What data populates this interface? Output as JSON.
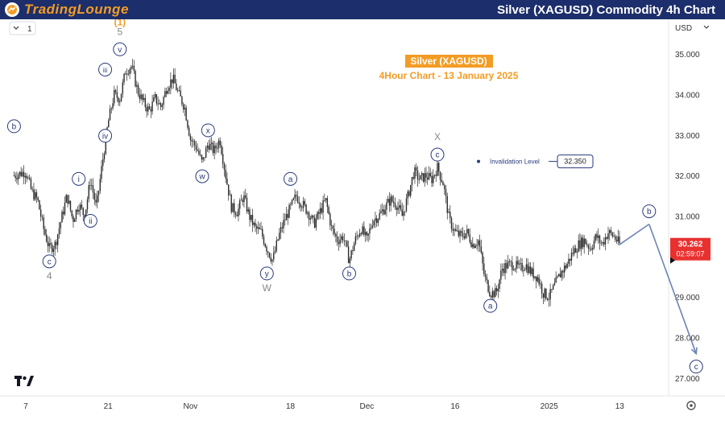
{
  "header": {
    "brand": "TradingLounge",
    "title": "Silver (XAGUSD) Commodity 4h Chart"
  },
  "toolbar": {
    "interval": "1"
  },
  "chart_data": {
    "type": "candlestick",
    "title": "Silver (XAGUSD)",
    "subtitle": "4Hour Chart - 13 January 2025",
    "currency": "USD",
    "ylim": [
      26.6,
      35.7
    ],
    "y_ticks": [
      "35.000",
      "34.000",
      "33.000",
      "32.000",
      "31.000",
      "30.000",
      "29.000",
      "28.000",
      "27.000"
    ],
    "y_tick_values": [
      35,
      34,
      33,
      32,
      31,
      30,
      29,
      28,
      27
    ],
    "x_ticks": [
      {
        "label": "7",
        "t": 0
      },
      {
        "label": "21",
        "t": 14
      },
      {
        "label": "Nov",
        "t": 28
      },
      {
        "label": "18",
        "t": 45
      },
      {
        "label": "Dec",
        "t": 58
      },
      {
        "label": "16",
        "t": 73
      },
      {
        "label": "2025",
        "t": 89
      },
      {
        "label": "13",
        "t": 101
      }
    ],
    "price_path": [
      {
        "t": -2,
        "p": 32.0
      },
      {
        "t": 0,
        "p": 32.1
      },
      {
        "t": 1,
        "p": 31.6
      },
      {
        "t": 2,
        "p": 31.4
      },
      {
        "t": 3,
        "p": 30.7
      },
      {
        "t": 4,
        "p": 30.2
      },
      {
        "t": 5,
        "p": 30.3
      },
      {
        "t": 6,
        "p": 30.9
      },
      {
        "t": 7,
        "p": 31.5
      },
      {
        "t": 8,
        "p": 30.9
      },
      {
        "t": 9,
        "p": 31.3
      },
      {
        "t": 10,
        "p": 31.0
      },
      {
        "t": 11,
        "p": 31.9
      },
      {
        "t": 12,
        "p": 31.2
      },
      {
        "t": 13,
        "p": 32.3
      },
      {
        "t": 14,
        "p": 33.3
      },
      {
        "t": 15,
        "p": 34.0
      },
      {
        "t": 16,
        "p": 33.9
      },
      {
        "t": 17,
        "p": 34.6
      },
      {
        "t": 18,
        "p": 34.7
      },
      {
        "t": 19,
        "p": 34.1
      },
      {
        "t": 20,
        "p": 33.8
      },
      {
        "t": 21,
        "p": 33.6
      },
      {
        "t": 22,
        "p": 33.9
      },
      {
        "t": 23,
        "p": 33.7
      },
      {
        "t": 24,
        "p": 34.2
      },
      {
        "t": 25,
        "p": 34.4
      },
      {
        "t": 26,
        "p": 34.0
      },
      {
        "t": 27,
        "p": 33.7
      },
      {
        "t": 28,
        "p": 32.9
      },
      {
        "t": 29,
        "p": 32.7
      },
      {
        "t": 30,
        "p": 32.3
      },
      {
        "t": 31,
        "p": 32.8
      },
      {
        "t": 32,
        "p": 32.6
      },
      {
        "t": 33,
        "p": 32.9
      },
      {
        "t": 34,
        "p": 32.0
      },
      {
        "t": 35,
        "p": 31.2
      },
      {
        "t": 36,
        "p": 31.1
      },
      {
        "t": 37,
        "p": 31.5
      },
      {
        "t": 38,
        "p": 31.0
      },
      {
        "t": 39,
        "p": 30.7
      },
      {
        "t": 40,
        "p": 30.6
      },
      {
        "t": 41,
        "p": 30.2
      },
      {
        "t": 42,
        "p": 29.9
      },
      {
        "t": 43,
        "p": 30.5
      },
      {
        "t": 44,
        "p": 30.9
      },
      {
        "t": 45,
        "p": 31.2
      },
      {
        "t": 46,
        "p": 31.5
      },
      {
        "t": 47,
        "p": 31.3
      },
      {
        "t": 48,
        "p": 31.1
      },
      {
        "t": 49,
        "p": 30.8
      },
      {
        "t": 50,
        "p": 31.1
      },
      {
        "t": 51,
        "p": 31.4
      },
      {
        "t": 52,
        "p": 30.7
      },
      {
        "t": 53,
        "p": 30.4
      },
      {
        "t": 54,
        "p": 30.5
      },
      {
        "t": 55,
        "p": 29.9
      },
      {
        "t": 56,
        "p": 30.4
      },
      {
        "t": 57,
        "p": 30.7
      },
      {
        "t": 58,
        "p": 30.4
      },
      {
        "t": 59,
        "p": 30.9
      },
      {
        "t": 60,
        "p": 31.0
      },
      {
        "t": 61,
        "p": 31.2
      },
      {
        "t": 62,
        "p": 31.4
      },
      {
        "t": 63,
        "p": 31.3
      },
      {
        "t": 64,
        "p": 31.0
      },
      {
        "t": 65,
        "p": 31.5
      },
      {
        "t": 66,
        "p": 32.1
      },
      {
        "t": 67,
        "p": 31.9
      },
      {
        "t": 68,
        "p": 32.0
      },
      {
        "t": 69,
        "p": 31.9
      },
      {
        "t": 70,
        "p": 32.2
      },
      {
        "t": 71,
        "p": 31.8
      },
      {
        "t": 72,
        "p": 30.9
      },
      {
        "t": 73,
        "p": 30.6
      },
      {
        "t": 74,
        "p": 30.5
      },
      {
        "t": 75,
        "p": 30.6
      },
      {
        "t": 76,
        "p": 30.3
      },
      {
        "t": 77,
        "p": 30.4
      },
      {
        "t": 78,
        "p": 29.5
      },
      {
        "t": 79,
        "p": 29.1
      },
      {
        "t": 80,
        "p": 29.1
      },
      {
        "t": 81,
        "p": 29.7
      },
      {
        "t": 82,
        "p": 29.8
      },
      {
        "t": 83,
        "p": 29.8
      },
      {
        "t": 84,
        "p": 29.7
      },
      {
        "t": 85,
        "p": 29.8
      },
      {
        "t": 86,
        "p": 29.6
      },
      {
        "t": 87,
        "p": 29.5
      },
      {
        "t": 88,
        "p": 29.1
      },
      {
        "t": 89,
        "p": 29.0
      },
      {
        "t": 90,
        "p": 29.3
      },
      {
        "t": 91,
        "p": 29.6
      },
      {
        "t": 92,
        "p": 29.8
      },
      {
        "t": 93,
        "p": 30.1
      },
      {
        "t": 94,
        "p": 30.3
      },
      {
        "t": 95,
        "p": 30.4
      },
      {
        "t": 96,
        "p": 30.2
      },
      {
        "t": 97,
        "p": 30.5
      },
      {
        "t": 98,
        "p": 30.3
      },
      {
        "t": 99,
        "p": 30.6
      },
      {
        "t": 100,
        "p": 30.5
      },
      {
        "t": 101,
        "p": 30.3
      }
    ],
    "invalidation": {
      "label": "Invalidation Level",
      "value": "32.350",
      "p": 32.35
    },
    "projection": [
      {
        "t": 106,
        "p": 30.8
      },
      {
        "t": 114,
        "p": 27.6
      }
    ],
    "current_price": {
      "value": "30.262",
      "countdown": "02:59:07",
      "p": 30.262
    },
    "wave_labels": [
      {
        "text": "b",
        "style": "circle",
        "t": -2,
        "p": 32.9,
        "place": "above"
      },
      {
        "text": "c",
        "style": "circle",
        "t": 4,
        "p": 30.2,
        "place": "below"
      },
      {
        "text": "4",
        "style": "plain",
        "t": 4,
        "p": 30.2,
        "place": "below2"
      },
      {
        "text": "i",
        "style": "circle",
        "t": 9,
        "p": 31.6,
        "place": "above"
      },
      {
        "text": "ii",
        "style": "circle",
        "t": 11,
        "p": 31.2,
        "place": "below"
      },
      {
        "text": "iii",
        "style": "circle",
        "t": 13.5,
        "p": 34.3,
        "place": "above"
      },
      {
        "text": "iv",
        "style": "circle",
        "t": 13.5,
        "p": 33.3,
        "place": "below"
      },
      {
        "text": "v",
        "style": "circle",
        "t": 16,
        "p": 34.8,
        "place": "above"
      },
      {
        "text": "5",
        "style": "plain",
        "t": 16,
        "p": 34.8,
        "place": "above2"
      },
      {
        "text": "(1)",
        "style": "orange",
        "t": 16,
        "p": 34.8,
        "place": "above3"
      },
      {
        "text": "x",
        "style": "circle",
        "t": 31,
        "p": 32.8,
        "place": "above"
      },
      {
        "text": "w",
        "style": "circle",
        "t": 30,
        "p": 32.3,
        "place": "below"
      },
      {
        "text": "y",
        "style": "circle",
        "t": 41,
        "p": 29.9,
        "place": "below"
      },
      {
        "text": "W",
        "style": "plain",
        "t": 41,
        "p": 29.9,
        "place": "below2"
      },
      {
        "text": "a",
        "style": "circle",
        "t": 45,
        "p": 31.6,
        "place": "above"
      },
      {
        "text": "b",
        "style": "circle",
        "t": 55,
        "p": 29.9,
        "place": "below"
      },
      {
        "text": "c",
        "style": "circle",
        "t": 70,
        "p": 32.2,
        "place": "above"
      },
      {
        "text": "X",
        "style": "plain",
        "t": 70,
        "p": 32.2,
        "place": "above2"
      },
      {
        "text": "a",
        "style": "circle",
        "t": 79,
        "p": 29.1,
        "place": "below"
      },
      {
        "text": "b",
        "style": "circle",
        "t": 106,
        "p": 30.8,
        "place": "above"
      },
      {
        "text": "c",
        "style": "circle",
        "t": 114,
        "p": 27.6,
        "place": "below"
      }
    ]
  },
  "colors": {
    "header_bg": "#1c2e6b",
    "brand_orange": "#f39c24",
    "wave_blue": "#2a3a7a",
    "candle": "#2b2b2b",
    "projection": "#6b84b4",
    "current_price": "#e8312f"
  }
}
